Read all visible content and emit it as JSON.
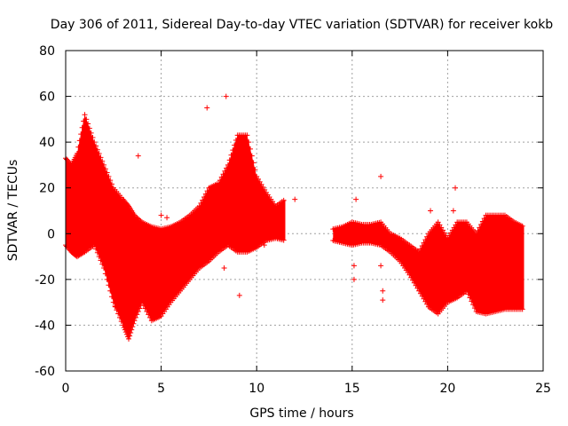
{
  "chart_data": {
    "type": "scatter",
    "title": "Day 306 of 2011, Sidereal Day-to-day VTEC variation (SDTVAR) for receiver kokb",
    "xlabel": "GPS time / hours",
    "ylabel": "SDTVAR / TECUs",
    "xlim": [
      0,
      25
    ],
    "ylim": [
      -60,
      80
    ],
    "xticks": [
      0,
      5,
      10,
      15,
      20,
      25
    ],
    "yticks": [
      -60,
      -40,
      -20,
      0,
      20,
      40,
      60,
      80
    ],
    "xtick_labels": [
      "0",
      "5",
      "10",
      "15",
      "20",
      "25"
    ],
    "ytick_labels": [
      "-60",
      "-40",
      "-20",
      "0",
      "20",
      "40",
      "60",
      "80"
    ],
    "grid": true,
    "series": [
      {
        "name": "SDTVAR",
        "color": "#ff0000",
        "marker": "plus",
        "dense_bands": [
          {
            "x": [
              0.0,
              0.3,
              0.6,
              1.0,
              1.5,
              2.0,
              2.5,
              3.0,
              3.3,
              3.6,
              4.0,
              4.5,
              5.0,
              5.5,
              6.0,
              6.5,
              7.0,
              7.5,
              8.0,
              8.5,
              9.0,
              9.5,
              10.0,
              10.5,
              11.0,
              11.5
            ],
            "y_low": [
              -5,
              -8,
              -10,
              -8,
              -5,
              -15,
              -30,
              -40,
              -46,
              -38,
              -30,
              -38,
              -36,
              -30,
              -25,
              -20,
              -15,
              -12,
              -8,
              -5,
              -8,
              -8,
              -6,
              -3,
              -2,
              -3
            ],
            "y_high": [
              33,
              30,
              35,
              52,
              40,
              30,
              20,
              15,
              12,
              8,
              5,
              3,
              2,
              3,
              5,
              8,
              12,
              20,
              22,
              30,
              43,
              43,
              25,
              18,
              12,
              15
            ]
          },
          {
            "x": [
              14.0,
              14.5,
              15.0,
              15.5,
              16.0,
              16.5,
              17.0,
              17.5,
              18.0,
              18.5,
              19.0,
              19.5,
              20.0,
              20.5,
              21.0,
              21.5,
              22.0,
              22.5,
              23.0,
              23.5,
              24.0
            ],
            "y_low": [
              -3,
              -4,
              -5,
              -4,
              -4,
              -5,
              -8,
              -12,
              -18,
              -25,
              -32,
              -35,
              -30,
              -28,
              -25,
              -34,
              -35,
              -34,
              -33,
              -33,
              -33
            ],
            "y_high": [
              2,
              3,
              5,
              4,
              4,
              5,
              0,
              -2,
              -5,
              -8,
              0,
              5,
              -2,
              5,
              5,
              0,
              8,
              8,
              8,
              5,
              3
            ]
          }
        ],
        "outliers": [
          {
            "x": 3.8,
            "y": 34
          },
          {
            "x": 7.4,
            "y": 55
          },
          {
            "x": 8.4,
            "y": 60
          },
          {
            "x": 9.1,
            "y": -27
          },
          {
            "x": 2.6,
            "y": -32
          },
          {
            "x": 15.2,
            "y": 15
          },
          {
            "x": 15.1,
            "y": -20
          },
          {
            "x": 15.1,
            "y": -14
          },
          {
            "x": 16.5,
            "y": 25
          },
          {
            "x": 16.6,
            "y": -25
          },
          {
            "x": 16.6,
            "y": -29
          },
          {
            "x": 16.5,
            "y": -14
          },
          {
            "x": 19.1,
            "y": 10
          },
          {
            "x": 20.4,
            "y": 20
          },
          {
            "x": 20.3,
            "y": 10
          },
          {
            "x": 5.0,
            "y": 8
          },
          {
            "x": 5.3,
            "y": 7
          },
          {
            "x": 10.4,
            "y": -5
          },
          {
            "x": 12.0,
            "y": 15
          },
          {
            "x": 8.3,
            "y": -15
          }
        ]
      }
    ]
  }
}
